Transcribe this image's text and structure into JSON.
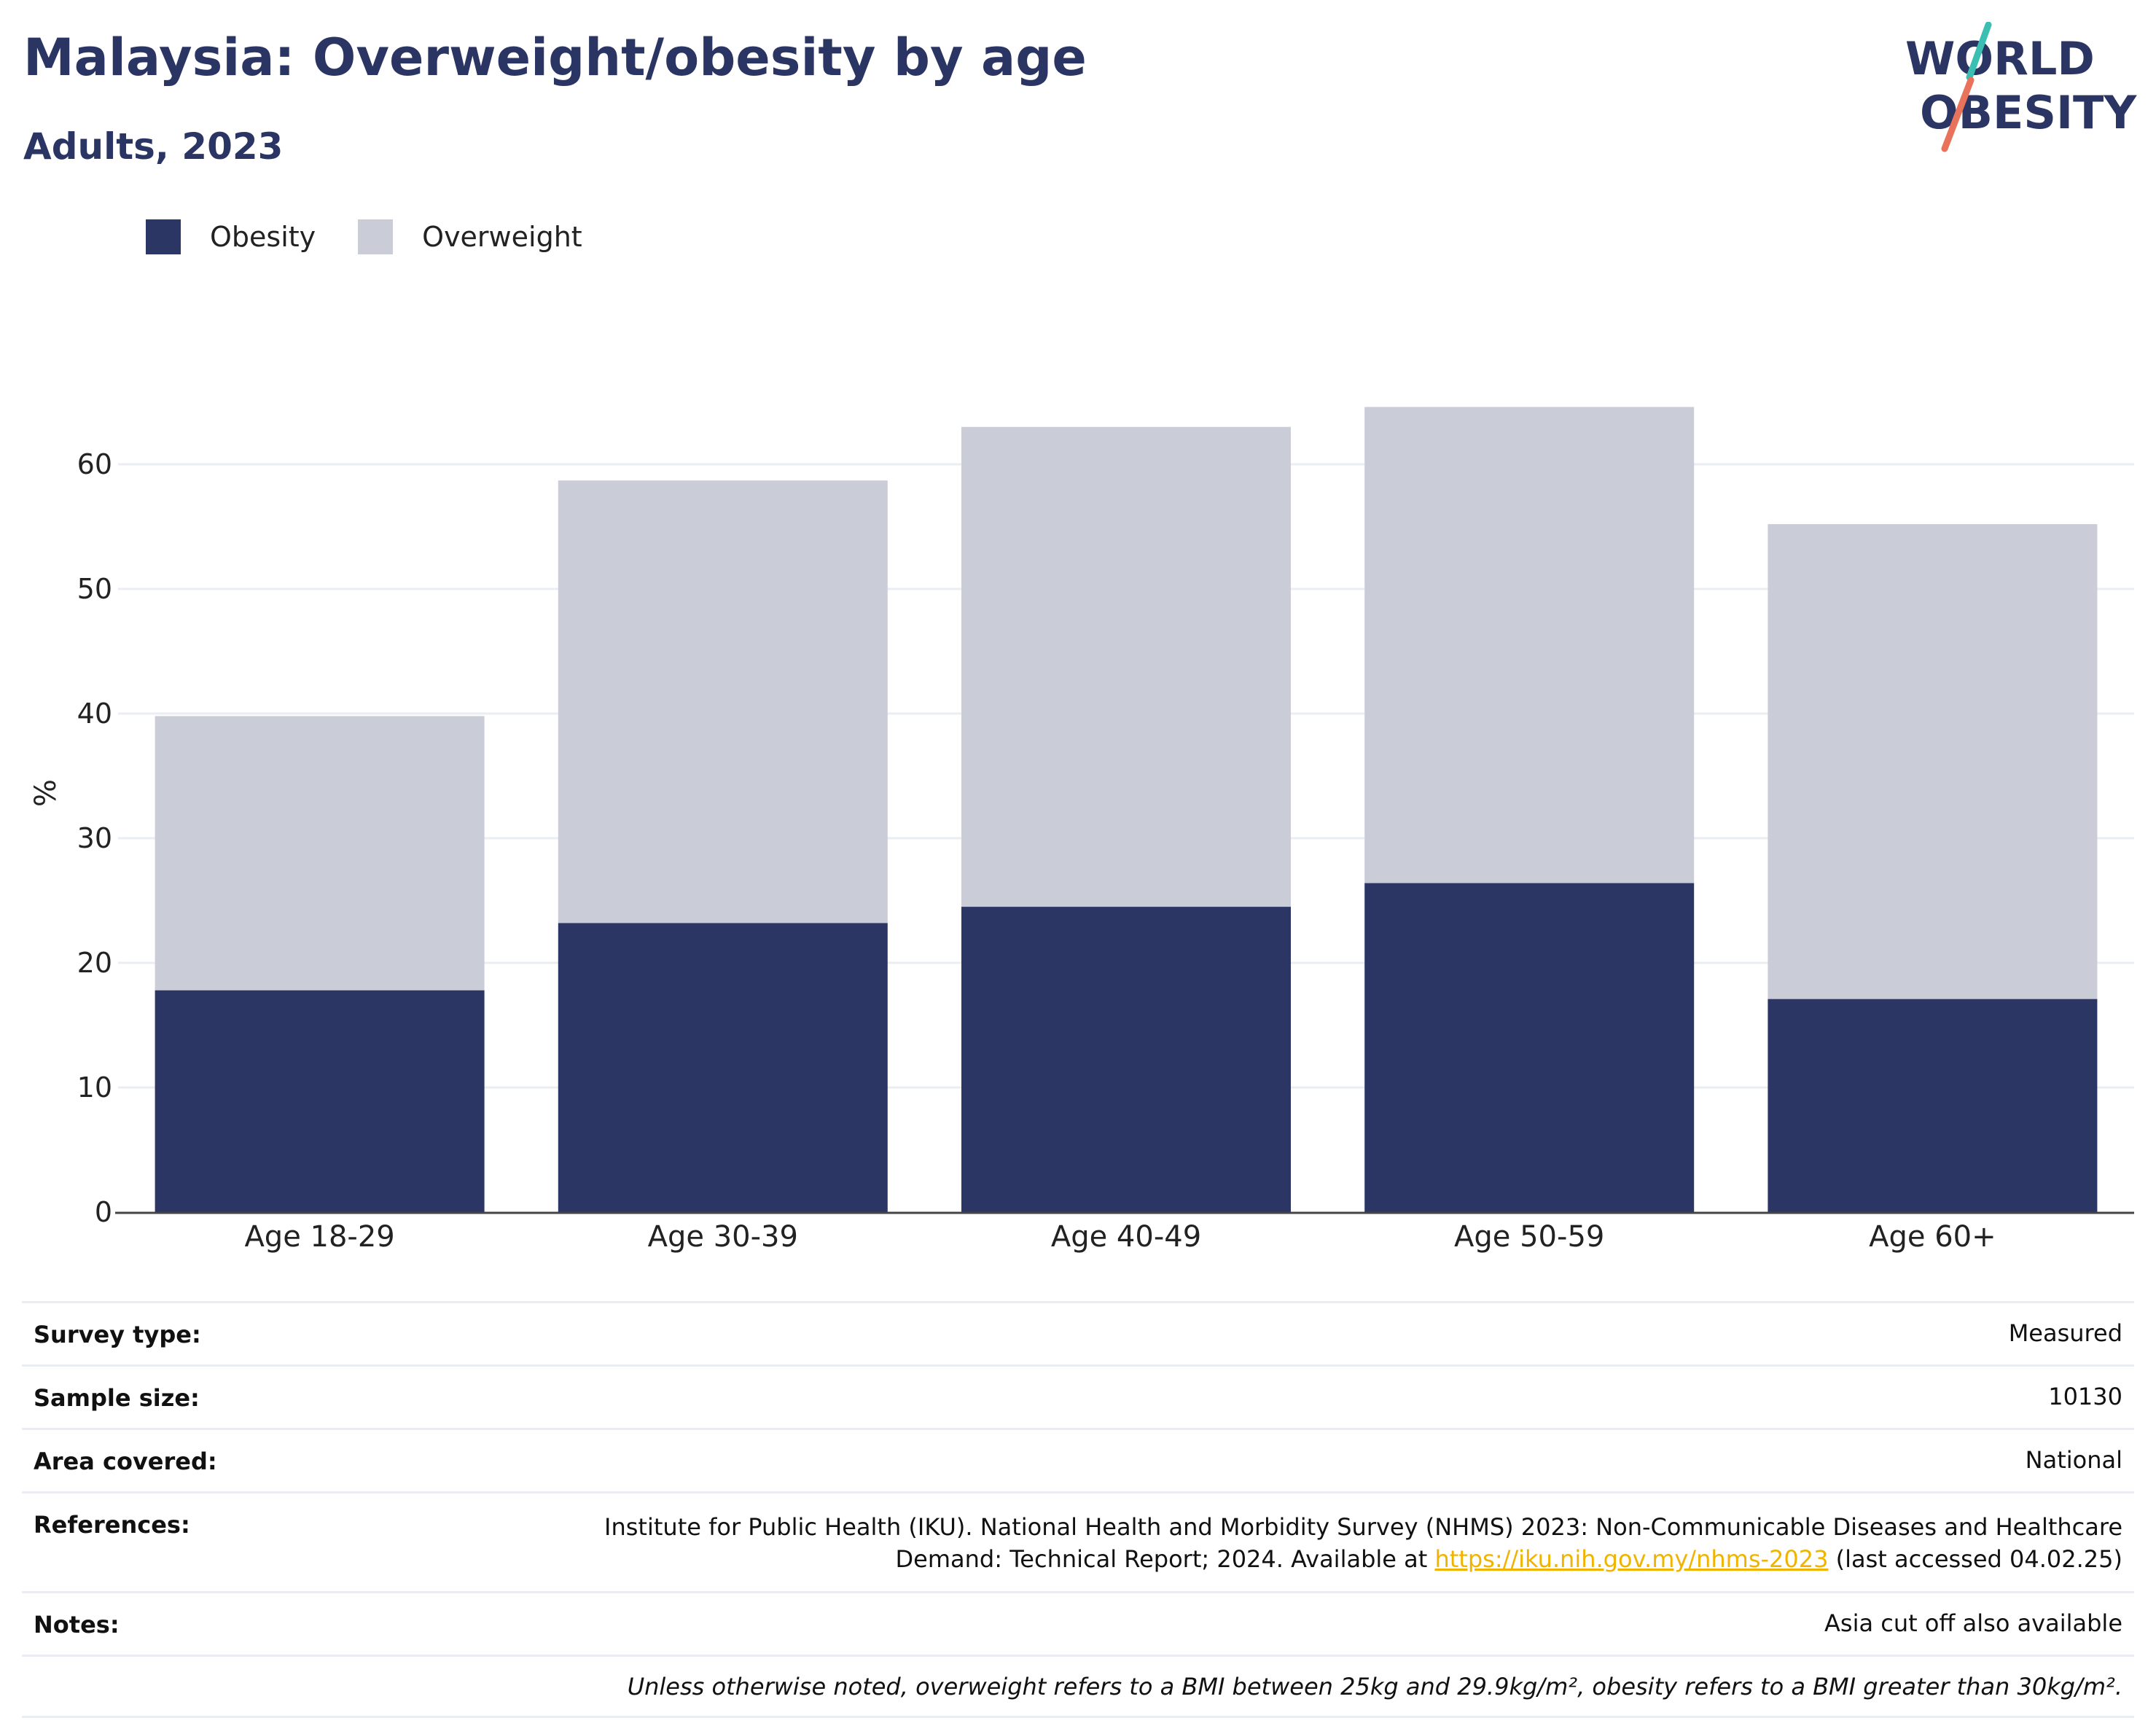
{
  "title": "Malaysia: Overweight/obesity by age",
  "subtitle": "Adults, 2023",
  "logo": {
    "line1": "WORLD",
    "line2": "OBESITY"
  },
  "colors": {
    "obesity": "#2b3664",
    "overweight": "#caccd8",
    "title": "#2b3564",
    "link": "#f0b400",
    "grid": "#eaedf2",
    "axis": "#444444"
  },
  "legend": [
    {
      "label": "Obesity",
      "color": "#2b3664"
    },
    {
      "label": "Overweight",
      "color": "#caccd8"
    }
  ],
  "chart_data": {
    "type": "bar",
    "stacked": true,
    "categories": [
      "Age 18-29",
      "Age 30-39",
      "Age 40-49",
      "Age 50-59",
      "Age 60+"
    ],
    "series": [
      {
        "name": "Obesity",
        "values": [
          17.8,
          23.2,
          24.5,
          26.4,
          17.1
        ]
      },
      {
        "name": "Overweight",
        "values": [
          22.0,
          35.5,
          38.5,
          38.2,
          38.1
        ]
      }
    ],
    "ylabel": "%",
    "xlabel": "",
    "ylim": [
      0,
      65
    ],
    "yticks": [
      0,
      10,
      20,
      30,
      40,
      50,
      60
    ],
    "grid": true,
    "legend_position": "top-left"
  },
  "info": {
    "survey_type": {
      "label": "Survey type:",
      "value": "Measured"
    },
    "sample_size": {
      "label": "Sample size:",
      "value": "10130"
    },
    "area_covered": {
      "label": "Area covered:",
      "value": "National"
    },
    "references": {
      "label": "References:",
      "text_line1": "Institute for Public Health (IKU). National Health and Morbidity Survey (NHMS) 2023: Non-Communicable Diseases and Healthcare",
      "text_line2_prefix": "Demand: Technical Report; 2024. Available at ",
      "link": "https://iku.nih.gov.my/nhms-2023",
      "text_line2_suffix": " (last accessed 04.02.25)"
    },
    "notes": {
      "label": "Notes:",
      "value": "Asia cut off also available"
    },
    "footnote": "Unless otherwise noted, overweight refers to a BMI between 25kg and 29.9kg/m², obesity refers to a BMI greater than 30kg/m²."
  }
}
